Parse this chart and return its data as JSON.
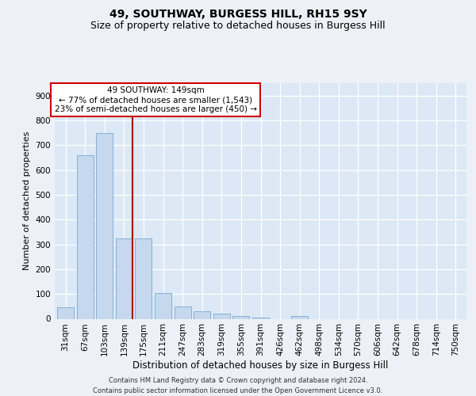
{
  "title1": "49, SOUTHWAY, BURGESS HILL, RH15 9SY",
  "title2": "Size of property relative to detached houses in Burgess Hill",
  "xlabel": "Distribution of detached houses by size in Burgess Hill",
  "ylabel": "Number of detached properties",
  "footnote": "Contains HM Land Registry data © Crown copyright and database right 2024.\nContains public sector information licensed under the Open Government Licence v3.0.",
  "categories": [
    "31sqm",
    "67sqm",
    "103sqm",
    "139sqm",
    "175sqm",
    "211sqm",
    "247sqm",
    "283sqm",
    "319sqm",
    "355sqm",
    "391sqm",
    "426sqm",
    "462sqm",
    "498sqm",
    "534sqm",
    "570sqm",
    "606sqm",
    "642sqm",
    "678sqm",
    "714sqm",
    "750sqm"
  ],
  "values": [
    45,
    660,
    750,
    325,
    325,
    105,
    50,
    30,
    20,
    12,
    5,
    0,
    10,
    0,
    0,
    0,
    0,
    0,
    0,
    0,
    0
  ],
  "bar_color": "#c5d8ed",
  "bar_edge_color": "#7aaace",
  "property_line_color": "#aa0000",
  "property_line_bar_index": 3,
  "annotation_text": "49 SOUTHWAY: 149sqm\n← 77% of detached houses are smaller (1,543)\n23% of semi-detached houses are larger (450) →",
  "annotation_box_color": "#ffffff",
  "annotation_box_edge": "#cc0000",
  "ylim": [
    0,
    950
  ],
  "yticks": [
    0,
    100,
    200,
    300,
    400,
    500,
    600,
    700,
    800,
    900
  ],
  "bg_color": "#edf1f7",
  "plot_bg_color": "#dce8f5",
  "grid_color": "#ffffff",
  "title1_fontsize": 10,
  "title2_fontsize": 9,
  "xlabel_fontsize": 8.5,
  "ylabel_fontsize": 8,
  "tick_fontsize": 7.5,
  "annotation_fontsize": 7.5,
  "footnote_fontsize": 6
}
